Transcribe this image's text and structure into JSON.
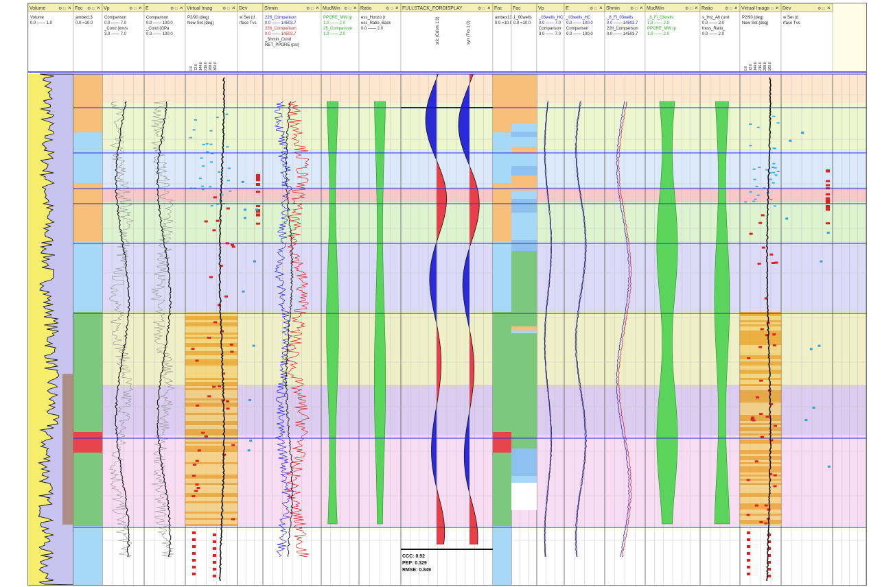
{
  "colors": {
    "header_bg": "#f2f0b8",
    "header_border": "#8a8a40",
    "horizon_line": "#2a2ad8",
    "red_fill": "#e8404a",
    "blue_fill": "#2a2ad8",
    "green_fill": "#5ad45a",
    "orange_facies": "#f7bf7a",
    "light_blue_facies": "#a8d8f8",
    "green_facies": "#7cc87c",
    "red_facies": "#e84450"
  },
  "tracks": [
    {
      "title": "Volume",
      "icons": true,
      "sub": [
        "Volume",
        "0.0 —— 1.0"
      ]
    },
    {
      "title": "Fac",
      "icons": true,
      "sub": [
        "ambex13",
        "0.0 =10.0"
      ]
    },
    {
      "title": "Vp",
      "icons": true,
      "sub": [
        "Comparison",
        "0.0 —— 7.0",
        "_Cond (km/s",
        "3.0 —— 7.0"
      ]
    },
    {
      "title": "E",
      "icons": true,
      "sub": [
        "Comparison",
        "0.0 —— 100.0",
        "_Cond (GPa",
        "0.0 —— 100.0"
      ]
    },
    {
      "title": "Virtual Imag",
      "icons": true,
      "sub": [
        "P2/90 (deg)",
        "New Set (deg)"
      ]
    },
    {
      "title": "Dev",
      "icons": true,
      "sub": [
        "w Set (d",
        "rface Tvs"
      ]
    },
    {
      "title": "Shmin",
      "icons": true,
      "sub": [
        "22ft_Comparison",
        "0.0 —— 14503.7",
        "22ft_Comparison",
        "0.0 —— 14503.7",
        "_Shmin_Cond",
        "RET_PPORE (psi)"
      ]
    },
    {
      "title": "MudWin",
      "icons": true,
      "sub": [
        "PPORE_MW (p",
        "1.0 —— 2.0",
        "2ft_Comparison",
        "1.0 —— 2.0"
      ]
    },
    {
      "title": "Ratio",
      "icons": true,
      "sub": [
        "ess_Horizo (r",
        "ess_Ratio_Back",
        "0.0 —— 2.0"
      ]
    },
    {
      "title": "FULLSTACK_FORDISPLAY",
      "icons": true,
      "sub": [
        "",
        ""
      ]
    },
    {
      "title": "Fac",
      "icons": true,
      "sub": [
        "ambex13",
        "0.0 =10.0"
      ]
    },
    {
      "title": "Fac",
      "icons": true,
      "sub": [
        "1_00wells",
        "0.0 =10.0"
      ]
    },
    {
      "title": "Vp",
      "icons": true,
      "sub": [
        "_03wells_HC",
        "0.0 —— 7.0",
        "Comparison",
        "3.0 —— 7.0"
      ]
    },
    {
      "title": "E",
      "icons": true,
      "sub": [
        "_03wells_HC",
        "0.0 —— 100.0",
        "Comparison",
        "0.0 —— 100.0"
      ]
    },
    {
      "title": "Shmin",
      "icons": true,
      "sub": [
        "_8_Fi_03wells",
        "0.0 —— 14503.7",
        "22ft_Comparison",
        "0.0 —— 14503.7"
      ]
    },
    {
      "title": "MudWin",
      "icons": true,
      "sub": [
        "_8_Fi_03wells",
        "1.0 —— 2.0",
        "PPORE_MW (p",
        "1.0 —— 2.0"
      ]
    },
    {
      "title": "Ratio",
      "icons": true,
      "sub": [
        "s_Hrz_Ah (unit",
        "0.0 —— 2.0",
        "tress_Ratio_",
        "0.0 —— 2.0"
      ]
    },
    {
      "title": "Virtual Imag",
      "icons": true,
      "sub": [
        "P2/90 (deg)",
        "New Set (deg)"
      ]
    },
    {
      "title": "Dev",
      "icons": true,
      "sub": [
        "w Set (d",
        "rface Tvs"
      ]
    }
  ],
  "seismic": {
    "left_label": "stic (Cdom 1.0)",
    "right_label": "syn (Tvs 1.0)"
  },
  "stats": {
    "ccc": "CCC: 0.92",
    "pep": "PEP: 0.329",
    "rmse": "RMSE: 0.849"
  },
  "icon_glyphs": {
    "settings_icon": "⚙",
    "expand_icon": "□",
    "close_icon": "×"
  }
}
